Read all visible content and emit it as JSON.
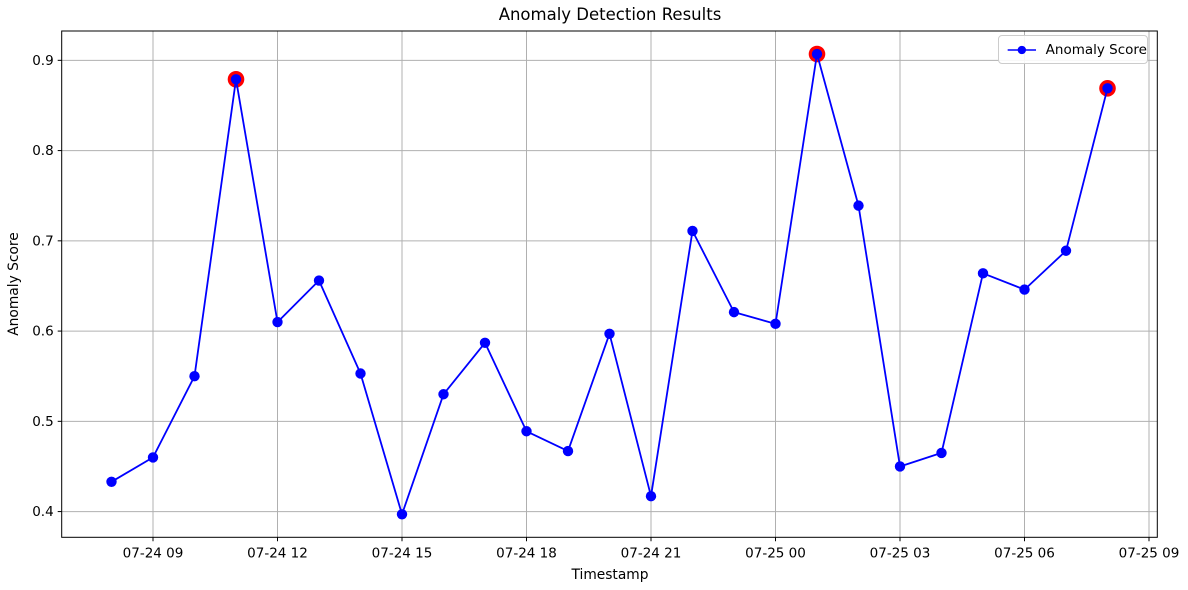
{
  "chart_data": {
    "type": "line",
    "title": "Anomaly Detection Results",
    "xlabel": "Timestamp",
    "ylabel": "Anomaly Score",
    "legend_label": "Anomaly Score",
    "legend_position": "upper right",
    "grid": true,
    "x": [
      "07-24 08",
      "07-24 09",
      "07-24 10",
      "07-24 11",
      "07-24 12",
      "07-24 13",
      "07-24 14",
      "07-24 15",
      "07-24 16",
      "07-24 17",
      "07-24 18",
      "07-24 19",
      "07-24 20",
      "07-24 21",
      "07-24 22",
      "07-24 23",
      "07-25 00",
      "07-25 01",
      "07-25 02",
      "07-25 03",
      "07-25 04",
      "07-25 05",
      "07-25 06",
      "07-25 07",
      "07-25 08"
    ],
    "y": [
      0.433,
      0.46,
      0.55,
      0.879,
      0.61,
      0.656,
      0.553,
      0.397,
      0.53,
      0.587,
      0.489,
      0.467,
      0.597,
      0.417,
      0.711,
      0.621,
      0.608,
      0.907,
      0.739,
      0.45,
      0.465,
      0.664,
      0.646,
      0.689,
      0.869
    ],
    "anomaly_indices": [
      3,
      17,
      24
    ],
    "anomaly_points": [
      {
        "time": "07-24 11",
        "value": 0.879
      },
      {
        "time": "07-25 01",
        "value": 0.907
      },
      {
        "time": "07-25 08",
        "value": 0.869
      }
    ],
    "x_tick_labels": [
      "07-24 09",
      "07-24 12",
      "07-24 15",
      "07-24 18",
      "07-24 21",
      "07-25 00",
      "07-25 03",
      "07-25 06",
      "07-25 09"
    ],
    "x_tick_hours": [
      1,
      4,
      7,
      10,
      13,
      16,
      19,
      22,
      25
    ],
    "y_ticks": [
      0.4,
      0.5,
      0.6,
      0.7,
      0.8,
      0.9
    ],
    "ylim": [
      0.3715,
      0.9325
    ],
    "xlim_hours": [
      -1.2,
      25.2
    ],
    "colors": {
      "line": "#0000ff",
      "marker": "#0000ff",
      "anomaly": "#ff0000",
      "grid": "#b0b0b0",
      "spine": "#000000",
      "legend_border": "#cccccc"
    }
  }
}
